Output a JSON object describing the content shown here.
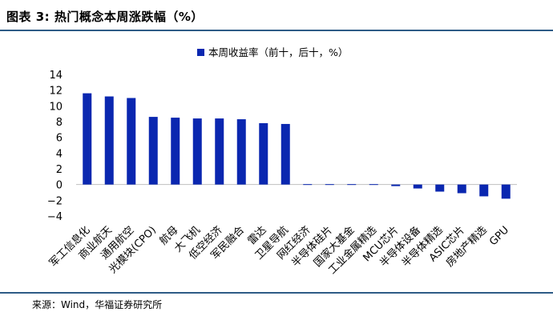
{
  "figure": {
    "title": "图表 3:  热门概念本周涨跌幅（%）",
    "source": "来源：Wind，华福证券研究所"
  },
  "chart_data": {
    "type": "bar",
    "title": "",
    "xlabel": "",
    "ylabel": "",
    "legend": {
      "position": "top-center"
    },
    "grid": false,
    "ylim": [
      -4,
      14
    ],
    "yticks": [
      -4,
      -2,
      0,
      2,
      4,
      6,
      8,
      10,
      12,
      14
    ],
    "categories": [
      "军工信息化",
      "商业航天",
      "通用航空",
      "光模块(CPO)",
      "航母",
      "大飞机",
      "低空经济",
      "军民融合",
      "雷达",
      "卫星导航",
      "网红经济",
      "半导体硅片",
      "国家大基金",
      "工业金属精选",
      "MCU芯片",
      "半导体设备",
      "半导体精选",
      "ASIC芯片",
      "房地产精选",
      "GPU"
    ],
    "series": [
      {
        "name": "本周收益率（前十，后十，%）",
        "color": "#0a27b0",
        "values": [
          11.6,
          11.2,
          11.0,
          8.6,
          8.5,
          8.4,
          8.4,
          8.3,
          7.8,
          7.7,
          0.05,
          0.05,
          0.05,
          0.05,
          -0.2,
          -0.5,
          -0.9,
          -1.1,
          -1.5,
          -1.8
        ]
      }
    ]
  }
}
